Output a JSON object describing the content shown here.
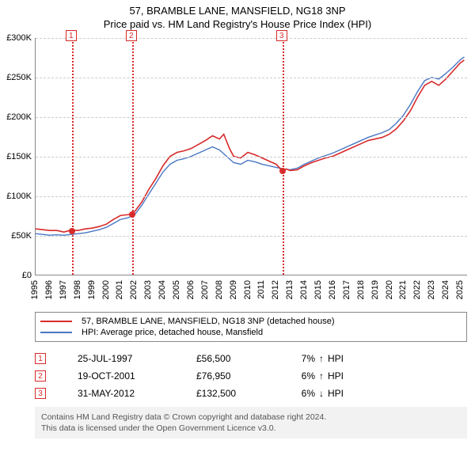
{
  "title_main": "57, BRAMBLE LANE, MANSFIELD, NG18 3NP",
  "title_sub": "Price paid vs. HM Land Registry's House Price Index (HPI)",
  "chart": {
    "type": "line",
    "background_color": "#ffffff",
    "grid_color": "#cccccc",
    "axis_color": "#888888",
    "xlim": [
      1995,
      2025.5
    ],
    "ylim": [
      0,
      300000
    ],
    "ytick_step": 50000,
    "ytick_labels": [
      "£0",
      "£50K",
      "£100K",
      "£150K",
      "£200K",
      "£250K",
      "£300K"
    ],
    "xtick_step": 1,
    "xtick_labels": [
      "1995",
      "1996",
      "1997",
      "1998",
      "1999",
      "2000",
      "2001",
      "2002",
      "2003",
      "2004",
      "2005",
      "2006",
      "2007",
      "2008",
      "2009",
      "2010",
      "2011",
      "2012",
      "2013",
      "2014",
      "2015",
      "2016",
      "2017",
      "2018",
      "2019",
      "2020",
      "2021",
      "2022",
      "2023",
      "2024",
      "2025"
    ],
    "label_fontsize": 11,
    "series": {
      "price_paid": {
        "label": "57, BRAMBLE LANE, MANSFIELD, NG18 3NP (detached house)",
        "color": "#d82a2a",
        "line_width": 1.6,
        "data": [
          [
            1995.0,
            58000
          ],
          [
            1995.5,
            57000
          ],
          [
            1996.0,
            56000
          ],
          [
            1996.5,
            56000
          ],
          [
            1997.0,
            54000
          ],
          [
            1997.5,
            56500
          ],
          [
            1998.0,
            56000
          ],
          [
            1998.5,
            58000
          ],
          [
            1999.0,
            59000
          ],
          [
            1999.5,
            61000
          ],
          [
            2000.0,
            64000
          ],
          [
            2000.5,
            70000
          ],
          [
            2001.0,
            75000
          ],
          [
            2001.5,
            76000
          ],
          [
            2001.8,
            76950
          ],
          [
            2002.0,
            80000
          ],
          [
            2002.5,
            92000
          ],
          [
            2003.0,
            108000
          ],
          [
            2003.5,
            122000
          ],
          [
            2004.0,
            138000
          ],
          [
            2004.5,
            150000
          ],
          [
            2005.0,
            155000
          ],
          [
            2005.5,
            157000
          ],
          [
            2006.0,
            160000
          ],
          [
            2006.5,
            165000
          ],
          [
            2007.0,
            170000
          ],
          [
            2007.5,
            176000
          ],
          [
            2008.0,
            172000
          ],
          [
            2008.3,
            178000
          ],
          [
            2008.7,
            160000
          ],
          [
            2009.0,
            150000
          ],
          [
            2009.5,
            148000
          ],
          [
            2010.0,
            155000
          ],
          [
            2010.5,
            152000
          ],
          [
            2011.0,
            148000
          ],
          [
            2011.5,
            144000
          ],
          [
            2012.0,
            140000
          ],
          [
            2012.4,
            132500
          ],
          [
            2012.7,
            134000
          ],
          [
            2013.0,
            132000
          ],
          [
            2013.5,
            133000
          ],
          [
            2014.0,
            138000
          ],
          [
            2014.5,
            142000
          ],
          [
            2015.0,
            145000
          ],
          [
            2015.5,
            148000
          ],
          [
            2016.0,
            150000
          ],
          [
            2016.5,
            154000
          ],
          [
            2017.0,
            158000
          ],
          [
            2017.5,
            162000
          ],
          [
            2018.0,
            166000
          ],
          [
            2018.5,
            170000
          ],
          [
            2019.0,
            172000
          ],
          [
            2019.5,
            174000
          ],
          [
            2020.0,
            178000
          ],
          [
            2020.5,
            185000
          ],
          [
            2021.0,
            195000
          ],
          [
            2021.5,
            208000
          ],
          [
            2022.0,
            225000
          ],
          [
            2022.5,
            240000
          ],
          [
            2023.0,
            245000
          ],
          [
            2023.5,
            240000
          ],
          [
            2024.0,
            248000
          ],
          [
            2024.5,
            258000
          ],
          [
            2025.0,
            268000
          ],
          [
            2025.3,
            272000
          ]
        ]
      },
      "hpi": {
        "label": "HPI: Average price, detached house, Mansfield",
        "color": "#4a77c4",
        "line_width": 1.4,
        "data": [
          [
            1995.0,
            52000
          ],
          [
            1995.5,
            51000
          ],
          [
            1996.0,
            50000
          ],
          [
            1996.5,
            50500
          ],
          [
            1997.0,
            50000
          ],
          [
            1997.5,
            51000
          ],
          [
            1998.0,
            52000
          ],
          [
            1998.5,
            53000
          ],
          [
            1999.0,
            55000
          ],
          [
            1999.5,
            57000
          ],
          [
            2000.0,
            60000
          ],
          [
            2000.5,
            65000
          ],
          [
            2001.0,
            70000
          ],
          [
            2001.5,
            72000
          ],
          [
            2002.0,
            76000
          ],
          [
            2002.5,
            88000
          ],
          [
            2003.0,
            102000
          ],
          [
            2003.5,
            116000
          ],
          [
            2004.0,
            130000
          ],
          [
            2004.5,
            140000
          ],
          [
            2005.0,
            145000
          ],
          [
            2005.5,
            147000
          ],
          [
            2006.0,
            150000
          ],
          [
            2006.5,
            154000
          ],
          [
            2007.0,
            158000
          ],
          [
            2007.5,
            162000
          ],
          [
            2008.0,
            158000
          ],
          [
            2008.5,
            150000
          ],
          [
            2009.0,
            142000
          ],
          [
            2009.5,
            140000
          ],
          [
            2010.0,
            145000
          ],
          [
            2010.5,
            143000
          ],
          [
            2011.0,
            140000
          ],
          [
            2011.5,
            138000
          ],
          [
            2012.0,
            136000
          ],
          [
            2012.5,
            134000
          ],
          [
            2013.0,
            133000
          ],
          [
            2013.5,
            135000
          ],
          [
            2014.0,
            140000
          ],
          [
            2014.5,
            144000
          ],
          [
            2015.0,
            148000
          ],
          [
            2015.5,
            151000
          ],
          [
            2016.0,
            154000
          ],
          [
            2016.5,
            158000
          ],
          [
            2017.0,
            162000
          ],
          [
            2017.5,
            166000
          ],
          [
            2018.0,
            170000
          ],
          [
            2018.5,
            174000
          ],
          [
            2019.0,
            177000
          ],
          [
            2019.5,
            180000
          ],
          [
            2020.0,
            184000
          ],
          [
            2020.5,
            192000
          ],
          [
            2021.0,
            202000
          ],
          [
            2021.5,
            216000
          ],
          [
            2022.0,
            232000
          ],
          [
            2022.5,
            246000
          ],
          [
            2023.0,
            250000
          ],
          [
            2023.5,
            248000
          ],
          [
            2024.0,
            255000
          ],
          [
            2024.5,
            263000
          ],
          [
            2025.0,
            272000
          ],
          [
            2025.3,
            276000
          ]
        ]
      }
    },
    "markers": [
      {
        "x": 1997.56,
        "y": 56500,
        "color": "#d82a2a",
        "size": 8
      },
      {
        "x": 2001.8,
        "y": 76950,
        "color": "#d82a2a",
        "size": 8
      },
      {
        "x": 2012.41,
        "y": 132500,
        "color": "#d82a2a",
        "size": 8
      }
    ],
    "event_lines": [
      {
        "x": 1997.56,
        "num": "1",
        "color": "#d82a2a"
      },
      {
        "x": 2001.8,
        "num": "2",
        "color": "#d82a2a"
      },
      {
        "x": 2012.41,
        "num": "3",
        "color": "#d82a2a"
      }
    ]
  },
  "legend": {
    "items": [
      {
        "color": "#d82a2a",
        "label_key": "chart.series.price_paid.label"
      },
      {
        "color": "#4a77c4",
        "label_key": "chart.series.hpi.label"
      }
    ]
  },
  "events_table": {
    "hpi_label": "HPI",
    "rows": [
      {
        "num": "1",
        "color": "#d82a2a",
        "date": "25-JUL-1997",
        "price": "£56,500",
        "pct": "7%",
        "arrow": "↑"
      },
      {
        "num": "2",
        "color": "#d82a2a",
        "date": "19-OCT-2001",
        "price": "£76,950",
        "pct": "6%",
        "arrow": "↑"
      },
      {
        "num": "3",
        "color": "#d82a2a",
        "date": "31-MAY-2012",
        "price": "£132,500",
        "pct": "6%",
        "arrow": "↓"
      }
    ]
  },
  "attribution": {
    "line1": "Contains HM Land Registry data © Crown copyright and database right 2024.",
    "line2": "This data is licensed under the Open Government Licence v3.0.",
    "background_color": "#f2f2f2",
    "text_color": "#555555"
  }
}
